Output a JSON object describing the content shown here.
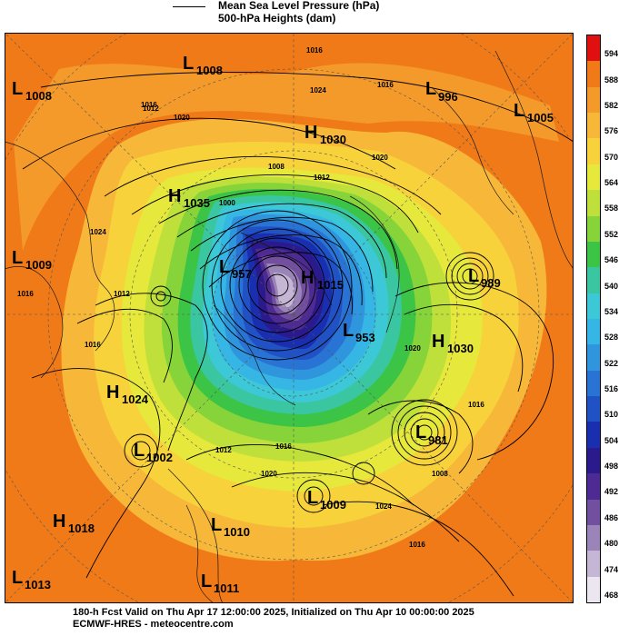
{
  "legend": {
    "line1": "Mean Sea Level Pressure (hPa)",
    "line2": "500-hPa Heights (dam)"
  },
  "colorbar": {
    "labels": [
      "594",
      "588",
      "582",
      "576",
      "570",
      "564",
      "558",
      "552",
      "546",
      "540",
      "534",
      "528",
      "522",
      "516",
      "510",
      "504",
      "498",
      "492",
      "486",
      "480",
      "474",
      "468"
    ],
    "colors": [
      "#e01010",
      "#f07a18",
      "#f49a2a",
      "#f7b83a",
      "#f7d23a",
      "#e6e83c",
      "#bfe03a",
      "#86d43a",
      "#3cc446",
      "#39c6a0",
      "#3cc8d6",
      "#36b6e4",
      "#2f95dc",
      "#2873d4",
      "#2052c6",
      "#1a2eb0",
      "#2a1a8c",
      "#4d2b93",
      "#73509f",
      "#9b84b8",
      "#c5b6d5",
      "#ece6f1"
    ]
  },
  "systems": [
    {
      "kind": "L",
      "value": "1008"
    },
    {
      "kind": "L",
      "value": "1008"
    },
    {
      "kind": "H",
      "value": "1030"
    },
    {
      "kind": "L",
      "value": "996"
    },
    {
      "kind": "L",
      "value": "1005"
    },
    {
      "kind": "H",
      "value": "1035"
    },
    {
      "kind": "L",
      "value": "1009"
    },
    {
      "kind": "L",
      "value": "957"
    },
    {
      "kind": "H",
      "value": "1015"
    },
    {
      "kind": "L",
      "value": "953"
    },
    {
      "kind": "L",
      "value": "989"
    },
    {
      "kind": "H",
      "value": "1030"
    },
    {
      "kind": "H",
      "value": "1024"
    },
    {
      "kind": "L",
      "value": "981"
    },
    {
      "kind": "L",
      "value": "1002"
    },
    {
      "kind": "L",
      "value": "1009"
    },
    {
      "kind": "H",
      "value": "1018"
    },
    {
      "kind": "L",
      "value": "1010"
    },
    {
      "kind": "L",
      "value": "1013"
    },
    {
      "kind": "L",
      "value": "1011"
    }
  ],
  "isobar_labels": [
    "1016",
    "1024",
    "1012",
    "1016",
    "1020",
    "1020",
    "1016",
    "1024",
    "1012",
    "1008",
    "1000",
    "1012",
    "1016",
    "1016",
    "1008",
    "1012",
    "1020",
    "1016",
    "1020",
    "1016",
    "1024",
    "1016"
  ],
  "footer": {
    "line1": "180-h Fcst Valid on Thu Apr 17 12:00:00 2025, Initialized on Thu Apr 10 00:00:00 2025",
    "line2": "ECMWF-HRES - meteocentre.com"
  }
}
